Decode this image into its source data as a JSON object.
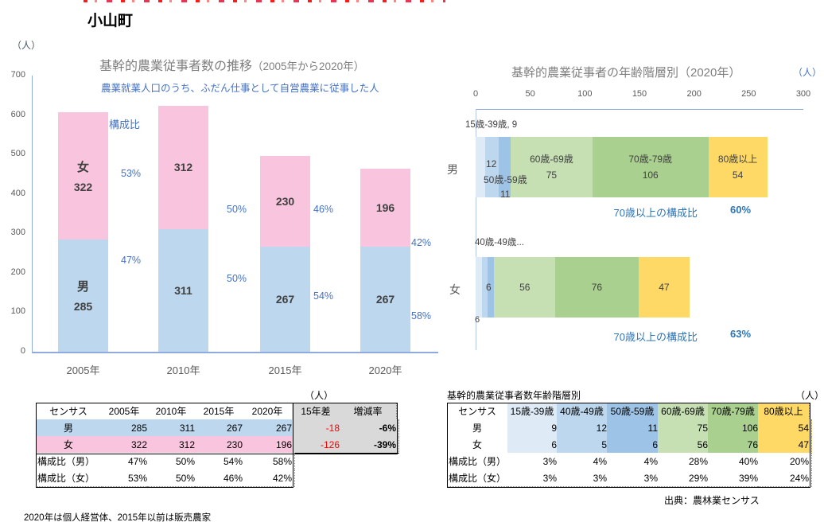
{
  "page": {
    "title": "小山町",
    "footnote": "2020年は個人経営体、2015年以前は販売農家",
    "source": "出典：農林業センサス"
  },
  "chart_data": [
    {
      "type": "bar",
      "subtype": "stacked-vertical",
      "title": "基幹的農業従事者数の推移",
      "title_suffix": "（2005年から2020年）",
      "subtitle": "農業就業人口のうち、ふだん仕事として自営農業に従事した人",
      "unit_label": "（人）",
      "composition_header": "構成比",
      "categories": [
        "2005年",
        "2010年",
        "2015年",
        "2020年"
      ],
      "ylim": [
        0,
        700
      ],
      "ytick_step": 100,
      "yticks": [
        0,
        100,
        200,
        300,
        400,
        500,
        600,
        700
      ],
      "series": [
        {
          "name": "男",
          "color": "#BDD7EE",
          "values": [
            285,
            311,
            267,
            267
          ],
          "composition_pct": [
            "47%",
            "50%",
            "54%",
            "58%"
          ]
        },
        {
          "name": "女",
          "color": "#F9C5DE",
          "values": [
            322,
            312,
            230,
            196
          ],
          "composition_pct": [
            "53%",
            "50%",
            "46%",
            "42%"
          ]
        }
      ],
      "legend_position": "in-bar-first-category",
      "grid": false
    },
    {
      "type": "bar",
      "subtype": "stacked-horizontal",
      "title": "基幹的農業従事者の年齢階層別（2020年）",
      "unit_label": "（人）",
      "xlim": [
        0,
        300
      ],
      "xticks": [
        0,
        50,
        100,
        150,
        200,
        250,
        300
      ],
      "categories": [
        "男",
        "女"
      ],
      "age_groups": [
        "15歳-39歳",
        "40歳-49歳",
        "50歳-59歳",
        "60歳-69歳",
        "70歳-79歳",
        "80歳以上"
      ],
      "colors": [
        "#DEEBF7",
        "#BDD7EE",
        "#9DC3E6",
        "#C6E0B4",
        "#A9D08E",
        "#FFD966"
      ],
      "series": [
        {
          "name": "男",
          "values": [
            9,
            12,
            11,
            75,
            106,
            54
          ]
        },
        {
          "name": "女",
          "values": [
            6,
            5,
            6,
            56,
            76,
            47
          ]
        }
      ],
      "annotations": {
        "male_above": "15歳-39歳, 9",
        "male_seg2_value": "12",
        "male_seg3_name": "50歳-59歳",
        "male_seg3_value": "11",
        "female_above": "40歳-49歳...",
        "female_seg1_below": "6",
        "female_seg3_value": "6",
        "over70_label": "70歳以上の構成比",
        "male_over70_pct": "60%",
        "female_over70_pct": "63%"
      },
      "grid": false
    }
  ],
  "tables": {
    "left": {
      "unit_label": "（人）",
      "columns": [
        "センサス",
        "2005年",
        "2010年",
        "2015年",
        "2020年",
        "15年差",
        "増減率"
      ],
      "rows": [
        {
          "label": "男",
          "values": [
            "285",
            "311",
            "267",
            "267"
          ],
          "diff": "-18",
          "rate": "-6%"
        },
        {
          "label": "女",
          "values": [
            "322",
            "312",
            "230",
            "196"
          ],
          "diff": "-126",
          "rate": "-39%"
        },
        {
          "label": "構成比（男）",
          "values": [
            "47%",
            "50%",
            "54%",
            "58%"
          ]
        },
        {
          "label": "構成比（女）",
          "values": [
            "53%",
            "50%",
            "46%",
            "42%"
          ]
        }
      ],
      "colors": {
        "male_bg": "#BDD7EE",
        "female_bg": "#F9C5DE",
        "gray_bg": "#D9D9D9",
        "negative_text": "#FF0000"
      }
    },
    "right": {
      "title": "基幹的農業従事者数年齢階層別",
      "unit_label": "（人）",
      "columns": [
        "センサス",
        "15歳-39歳",
        "40歳-49歳",
        "50歳-59歳",
        "60歳-69歳",
        "70歳-79歳",
        "80歳以上"
      ],
      "column_colors": [
        "#FFFFFF",
        "#DEEBF7",
        "#BDD7EE",
        "#9DC3E6",
        "#C6E0B4",
        "#A9D08E",
        "#FFD966"
      ],
      "rows": [
        {
          "label": "男",
          "values": [
            "9",
            "12",
            "11",
            "75",
            "106",
            "54"
          ],
          "colored": true
        },
        {
          "label": "女",
          "values": [
            "6",
            "5",
            "6",
            "56",
            "76",
            "47"
          ],
          "colored": true
        },
        {
          "label": "構成比（男）",
          "values": [
            "3%",
            "4%",
            "4%",
            "28%",
            "40%",
            "20%"
          ],
          "colored": false
        },
        {
          "label": "構成比（女）",
          "values": [
            "3%",
            "3%",
            "3%",
            "29%",
            "39%",
            "24%"
          ],
          "colored": false
        }
      ]
    }
  }
}
